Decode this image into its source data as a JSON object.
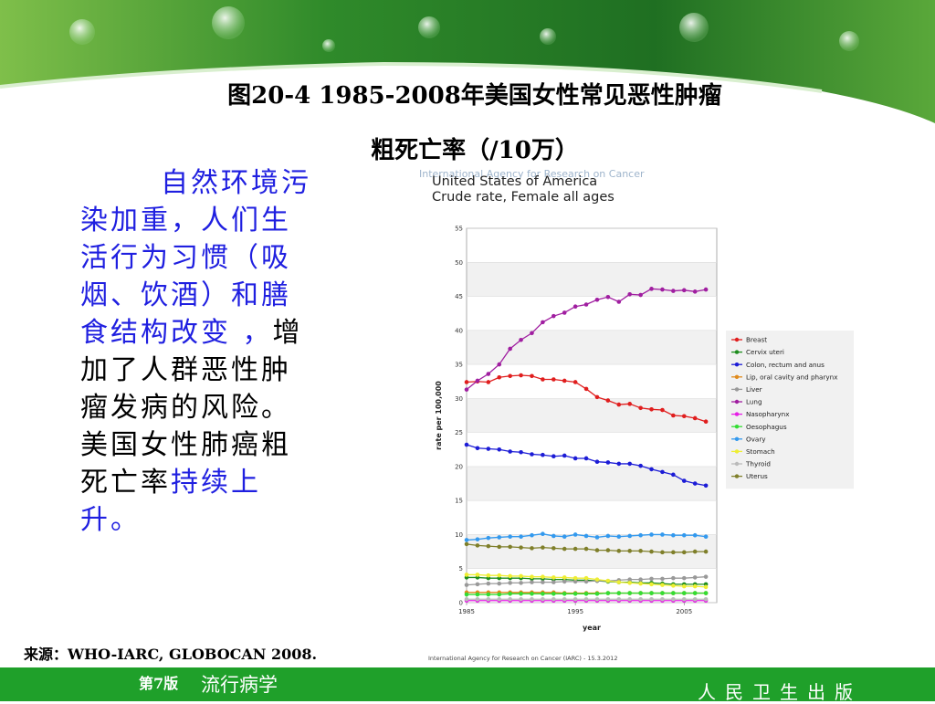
{
  "slide": {
    "title_line1": "图20-4  1985-2008年美国女性常见恶性肿瘤",
    "title_line2": "粗死亡率（/10万）",
    "body": {
      "part1": "自然环境污染加重，人们生活行为习惯（吸烟、饮酒）和膳食结构改变 ，",
      "part2": "增加了人群恶性肿瘤发病的风险。美国女性肺癌粗死亡率",
      "part3": "持续上升。"
    },
    "source": "来源：WHO-IARC, GLOBOCAN 2008."
  },
  "footer": {
    "edition": "第7版",
    "book": "流行病学",
    "publisher": "人民卫生出版"
  },
  "chart_data": {
    "type": "line",
    "watermark": "International Agency for Research on Cancer",
    "title_line1": "United States of America",
    "title_line2": "Crude rate, Female all ages",
    "xlabel": "year",
    "ylabel": "rate per 100,000",
    "xlim": [
      1985,
      2008
    ],
    "ylim": [
      0,
      55
    ],
    "xticks": [
      1985,
      1995,
      2005
    ],
    "yticks": [
      0,
      5,
      10,
      15,
      20,
      25,
      30,
      35,
      40,
      45,
      50,
      55
    ],
    "grid": true,
    "legend_position": "right",
    "footnote": "International Agency for Research on Cancer (IARC) - 15.3.2012",
    "x": [
      1985,
      1986,
      1987,
      1988,
      1989,
      1990,
      1991,
      1992,
      1993,
      1994,
      1995,
      1996,
      1997,
      1998,
      1999,
      2000,
      2001,
      2002,
      2003,
      2004,
      2005,
      2006,
      2007
    ],
    "series": [
      {
        "name": "Breast",
        "color": "#e01e1e",
        "values": [
          32.4,
          32.5,
          32.4,
          33.1,
          33.3,
          33.4,
          33.3,
          32.8,
          32.8,
          32.6,
          32.4,
          31.4,
          30.2,
          29.7,
          29.1,
          29.2,
          28.6,
          28.4,
          28.3,
          27.5,
          27.4,
          27.1,
          26.6
        ]
      },
      {
        "name": "Cervix uteri",
        "color": "#1c8c1c",
        "values": [
          3.7,
          3.7,
          3.6,
          3.6,
          3.6,
          3.6,
          3.5,
          3.5,
          3.4,
          3.4,
          3.3,
          3.3,
          3.2,
          3.1,
          3.0,
          3.0,
          2.9,
          2.9,
          2.8,
          2.7,
          2.7,
          2.7,
          2.7
        ]
      },
      {
        "name": "Colon, rectum and anus",
        "color": "#1c1cd6",
        "values": [
          23.2,
          22.7,
          22.6,
          22.5,
          22.2,
          22.1,
          21.8,
          21.7,
          21.5,
          21.6,
          21.2,
          21.2,
          20.7,
          20.6,
          20.4,
          20.4,
          20.1,
          19.6,
          19.2,
          18.8,
          17.9,
          17.5,
          17.2
        ]
      },
      {
        "name": "Lip, oral cavity and pharynx",
        "color": "#e08a1c",
        "values": [
          1.5,
          1.5,
          1.5,
          1.5,
          1.5,
          1.5,
          1.5,
          1.5,
          1.5,
          1.4,
          1.4,
          1.4,
          1.4,
          1.4,
          1.4,
          1.4,
          1.4,
          1.4,
          1.4,
          1.4,
          1.4,
          1.4,
          1.4
        ]
      },
      {
        "name": "Liver",
        "color": "#999999",
        "values": [
          2.6,
          2.7,
          2.8,
          2.8,
          2.9,
          2.9,
          3.0,
          3.0,
          3.0,
          3.1,
          3.1,
          3.1,
          3.2,
          3.2,
          3.3,
          3.4,
          3.4,
          3.5,
          3.5,
          3.6,
          3.6,
          3.7,
          3.8
        ]
      },
      {
        "name": "Lung",
        "color": "#a01ea0",
        "values": [
          31.3,
          32.6,
          33.6,
          35.0,
          37.3,
          38.6,
          39.6,
          41.2,
          42.1,
          42.6,
          43.5,
          43.8,
          44.5,
          44.9,
          44.2,
          45.3,
          45.2,
          46.1,
          46.0,
          45.8,
          45.9,
          45.7,
          46.0
        ]
      },
      {
        "name": "Nasopharynx",
        "color": "#e61ee6",
        "values": [
          0.3,
          0.3,
          0.3,
          0.3,
          0.3,
          0.3,
          0.3,
          0.3,
          0.3,
          0.3,
          0.3,
          0.3,
          0.3,
          0.3,
          0.3,
          0.3,
          0.3,
          0.3,
          0.3,
          0.3,
          0.3,
          0.3,
          0.3
        ]
      },
      {
        "name": "Oesophagus",
        "color": "#33dd33",
        "values": [
          1.2,
          1.2,
          1.2,
          1.2,
          1.3,
          1.3,
          1.3,
          1.3,
          1.3,
          1.3,
          1.3,
          1.3,
          1.3,
          1.4,
          1.4,
          1.4,
          1.4,
          1.4,
          1.4,
          1.4,
          1.4,
          1.4,
          1.4
        ]
      },
      {
        "name": "Ovary",
        "color": "#3399ee",
        "values": [
          9.2,
          9.3,
          9.5,
          9.6,
          9.7,
          9.7,
          9.9,
          10.1,
          9.8,
          9.7,
          10.0,
          9.8,
          9.6,
          9.8,
          9.7,
          9.8,
          9.9,
          10.0,
          10.0,
          9.9,
          9.9,
          9.9,
          9.7
        ]
      },
      {
        "name": "Stomach",
        "color": "#eeee33",
        "values": [
          4.1,
          4.1,
          4.0,
          4.0,
          3.9,
          3.9,
          3.8,
          3.8,
          3.7,
          3.7,
          3.6,
          3.6,
          3.4,
          3.2,
          3.0,
          2.9,
          2.8,
          2.7,
          2.6,
          2.5,
          2.4,
          2.4,
          2.3
        ]
      },
      {
        "name": "Thyroid",
        "color": "#bbbbbb",
        "values": [
          0.5,
          0.5,
          0.5,
          0.5,
          0.5,
          0.5,
          0.5,
          0.5,
          0.5,
          0.5,
          0.5,
          0.5,
          0.5,
          0.5,
          0.5,
          0.5,
          0.5,
          0.5,
          0.5,
          0.5,
          0.5,
          0.5,
          0.5
        ]
      },
      {
        "name": "Uterus",
        "color": "#7f7f2a",
        "values": [
          8.6,
          8.4,
          8.3,
          8.2,
          8.2,
          8.1,
          8.0,
          8.1,
          8.0,
          7.9,
          7.9,
          7.9,
          7.7,
          7.7,
          7.6,
          7.6,
          7.6,
          7.5,
          7.4,
          7.4,
          7.4,
          7.5,
          7.5
        ]
      }
    ]
  }
}
